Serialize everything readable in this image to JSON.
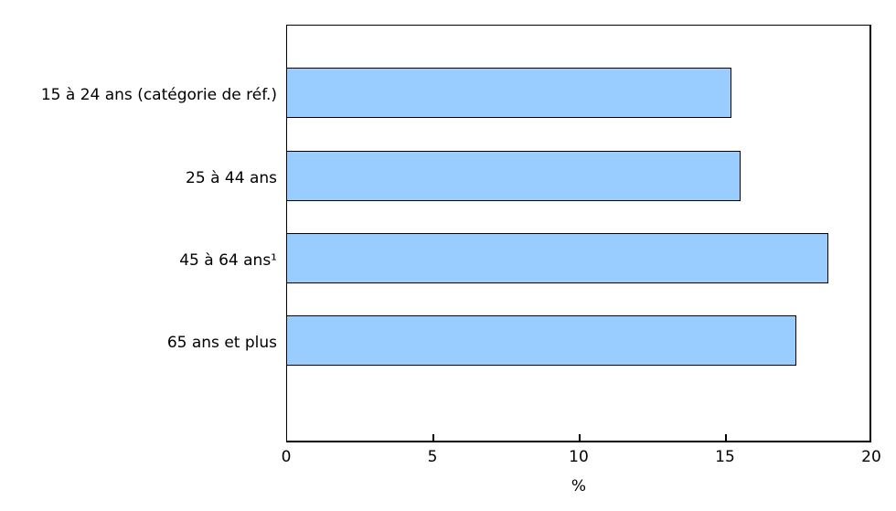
{
  "chart_data": {
    "type": "bar",
    "orientation": "horizontal",
    "categories": [
      "15 à 24 ans (catégorie de réf.)",
      "25 à 44 ans",
      "45 à 64 ans¹",
      "65 ans et plus"
    ],
    "values": [
      15.2,
      15.5,
      18.5,
      17.4
    ],
    "xlabel": "%",
    "xlim": [
      0,
      20
    ],
    "xticks": [
      0,
      5,
      10,
      15,
      20
    ],
    "grid": false,
    "legend": null,
    "bar_color": "#99CCFF",
    "bar_border_color": "#000000",
    "axis_color": "#000000",
    "text_color": "#000000",
    "background_color": "#FFFFFF"
  }
}
